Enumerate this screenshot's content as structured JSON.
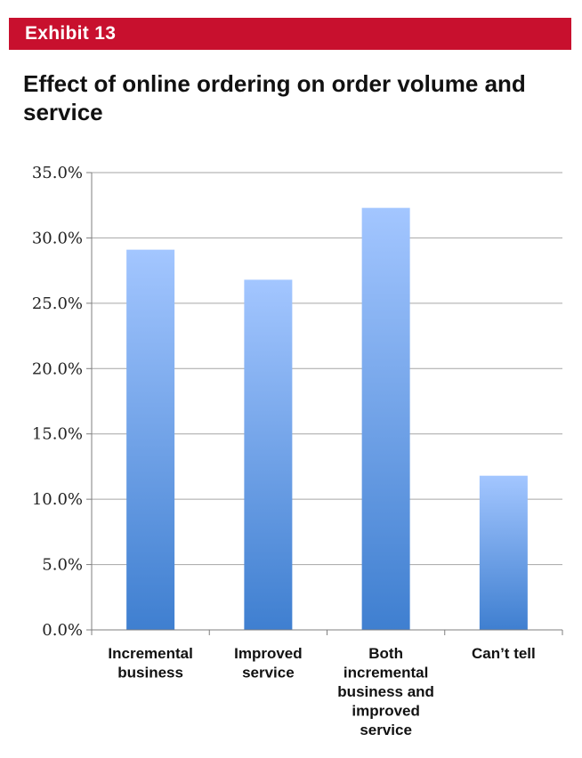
{
  "exhibit": {
    "label": "Exhibit 13"
  },
  "chart_data": {
    "type": "bar",
    "title": "Effect of online ordering on order volume and service",
    "xlabel": "",
    "ylabel": "",
    "categories": [
      [
        "Incremental",
        "business"
      ],
      [
        "Improved",
        "service"
      ],
      [
        "Both",
        "incremental",
        "business and",
        "improved",
        "service"
      ],
      [
        "Can’t tell"
      ]
    ],
    "values": [
      29.1,
      26.8,
      32.3,
      11.8
    ],
    "ylim": [
      0,
      35
    ],
    "yticks": [
      "0.0%",
      "5.0%",
      "10.0%",
      "15.0%",
      "20.0%",
      "25.0%",
      "30.0%",
      "35.0%"
    ],
    "grid": true,
    "colors": {
      "bar_top": "#a3c6ff",
      "bar_bottom": "#3f7fd0",
      "grid": "#a6a6a6",
      "axis": "#7f7f7f"
    }
  }
}
